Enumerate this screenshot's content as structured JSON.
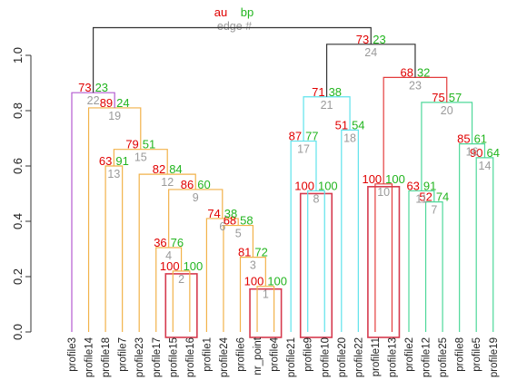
{
  "chart_data": {
    "type": "dendrogram",
    "legend": {
      "au": "au",
      "bp": "bp",
      "edge": "edge #"
    },
    "ylim": [
      0,
      1.1
    ],
    "yticks": [
      "0.0",
      "0.2",
      "0.4",
      "0.6",
      "0.8",
      "1.0"
    ],
    "ytick_values": [
      0,
      0.2,
      0.4,
      0.6,
      0.8,
      1.0
    ],
    "leaves": [
      "profile3",
      "profile14",
      "profile18",
      "profile7",
      "profile23",
      "profile17",
      "profile15",
      "profile16",
      "profile1",
      "profile24",
      "profile6",
      "nr_point",
      "profile4",
      "profile21",
      "profile9",
      "profile10",
      "profile20",
      "profile22",
      "profile11",
      "profile13",
      "profile2",
      "profile12",
      "profile25",
      "profile8",
      "profile5",
      "profile19"
    ],
    "colors": {
      "root": "#333333",
      "purple": "#b45bd0",
      "orange": "#f2b24a",
      "cyan": "#5fe3ec",
      "red": "#e33c3c",
      "green": "#4ed89a",
      "box": "#d63a4e"
    },
    "merges": [
      {
        "edge": "1",
        "left": "L:profile4",
        "right": "L:nr_point",
        "height": 0.165,
        "au": "100",
        "bp": "100",
        "color": "orange"
      },
      {
        "edge": "2",
        "left": "L:profile15",
        "right": "L:profile16",
        "height": 0.22,
        "au": "100",
        "bp": "100",
        "color": "orange"
      },
      {
        "edge": "3",
        "left": "L:profile6",
        "right": "E:1",
        "height": 0.27,
        "au": "81",
        "bp": "72",
        "color": "orange"
      },
      {
        "edge": "4",
        "left": "L:profile17",
        "right": "E:2",
        "height": 0.305,
        "au": "36",
        "bp": "76",
        "color": "orange"
      },
      {
        "edge": "5",
        "left": "L:profile24",
        "right": "E:3",
        "height": 0.385,
        "au": "68",
        "bp": "58",
        "color": "orange"
      },
      {
        "edge": "6",
        "left": "L:profile1",
        "right": "E:5",
        "height": 0.41,
        "au": "74",
        "bp": "38",
        "color": "orange"
      },
      {
        "edge": "7",
        "left": "L:profile12",
        "right": "L:profile25",
        "height": 0.47,
        "au": "52",
        "bp": "74",
        "color": "green"
      },
      {
        "edge": "8",
        "left": "L:profile9",
        "right": "L:profile10",
        "height": 0.51,
        "au": "100",
        "bp": "100",
        "color": "cyan"
      },
      {
        "edge": "9",
        "left": "E:4",
        "right": "E:6",
        "height": 0.515,
        "au": "86",
        "bp": "60",
        "color": "orange"
      },
      {
        "edge": "10",
        "left": "L:profile11",
        "right": "L:profile13",
        "height": 0.535,
        "au": "100",
        "bp": "100",
        "color": "red"
      },
      {
        "edge": "11",
        "left": "L:profile2",
        "right": "E:7",
        "height": 0.51,
        "au": "63",
        "bp": "91",
        "color": "green"
      },
      {
        "edge": "12",
        "left": "L:profile23",
        "right": "E:9",
        "height": 0.57,
        "au": "82",
        "bp": "84",
        "color": "orange"
      },
      {
        "edge": "13",
        "left": "L:profile18",
        "right": "L:profile7",
        "height": 0.6,
        "au": "63",
        "bp": "91",
        "color": "orange"
      },
      {
        "edge": "14",
        "left": "L:profile5",
        "right": "L:profile19",
        "height": 0.63,
        "au": "90",
        "bp": "64",
        "color": "green"
      },
      {
        "edge": "15",
        "left": "E:13",
        "right": "E:12",
        "height": 0.66,
        "au": "79",
        "bp": "51",
        "color": "orange"
      },
      {
        "edge": "16",
        "left": "L:profile8",
        "right": "E:14",
        "height": 0.68,
        "au": "85",
        "bp": "61",
        "color": "green"
      },
      {
        "edge": "17",
        "left": "L:profile21",
        "right": "E:8",
        "height": 0.69,
        "au": "87",
        "bp": "77",
        "color": "cyan"
      },
      {
        "edge": "18",
        "left": "L:profile20",
        "right": "L:profile22",
        "height": 0.73,
        "au": "51",
        "bp": "54",
        "color": "cyan"
      },
      {
        "edge": "19",
        "left": "L:profile14",
        "right": "E:15",
        "height": 0.81,
        "au": "89",
        "bp": "24",
        "color": "orange"
      },
      {
        "edge": "20",
        "left": "E:11",
        "right": "E:16",
        "height": 0.83,
        "au": "75",
        "bp": "57",
        "color": "green"
      },
      {
        "edge": "21",
        "left": "E:17",
        "right": "E:18",
        "height": 0.85,
        "au": "71",
        "bp": "38",
        "color": "cyan"
      },
      {
        "edge": "22",
        "left": "L:profile3",
        "right": "E:19",
        "height": 0.865,
        "au": "73",
        "bp": "23",
        "color": "purple"
      },
      {
        "edge": "23",
        "left": "E:10",
        "right": "E:20",
        "height": 0.92,
        "au": "68",
        "bp": "32",
        "color": "red"
      },
      {
        "edge": "24",
        "left": "E:21",
        "right": "E:23",
        "height": 1.04,
        "au": "73",
        "bp": "23",
        "color": "root"
      },
      {
        "edge": "",
        "left": "E:22",
        "right": "E:24",
        "height": 1.1,
        "au": "",
        "bp": "",
        "color": "root"
      }
    ],
    "boxes": [
      [
        "profile15",
        "profile16"
      ],
      [
        "nr_point",
        "profile4"
      ],
      [
        "profile9",
        "profile10"
      ],
      [
        "profile11",
        "profile13"
      ]
    ]
  }
}
